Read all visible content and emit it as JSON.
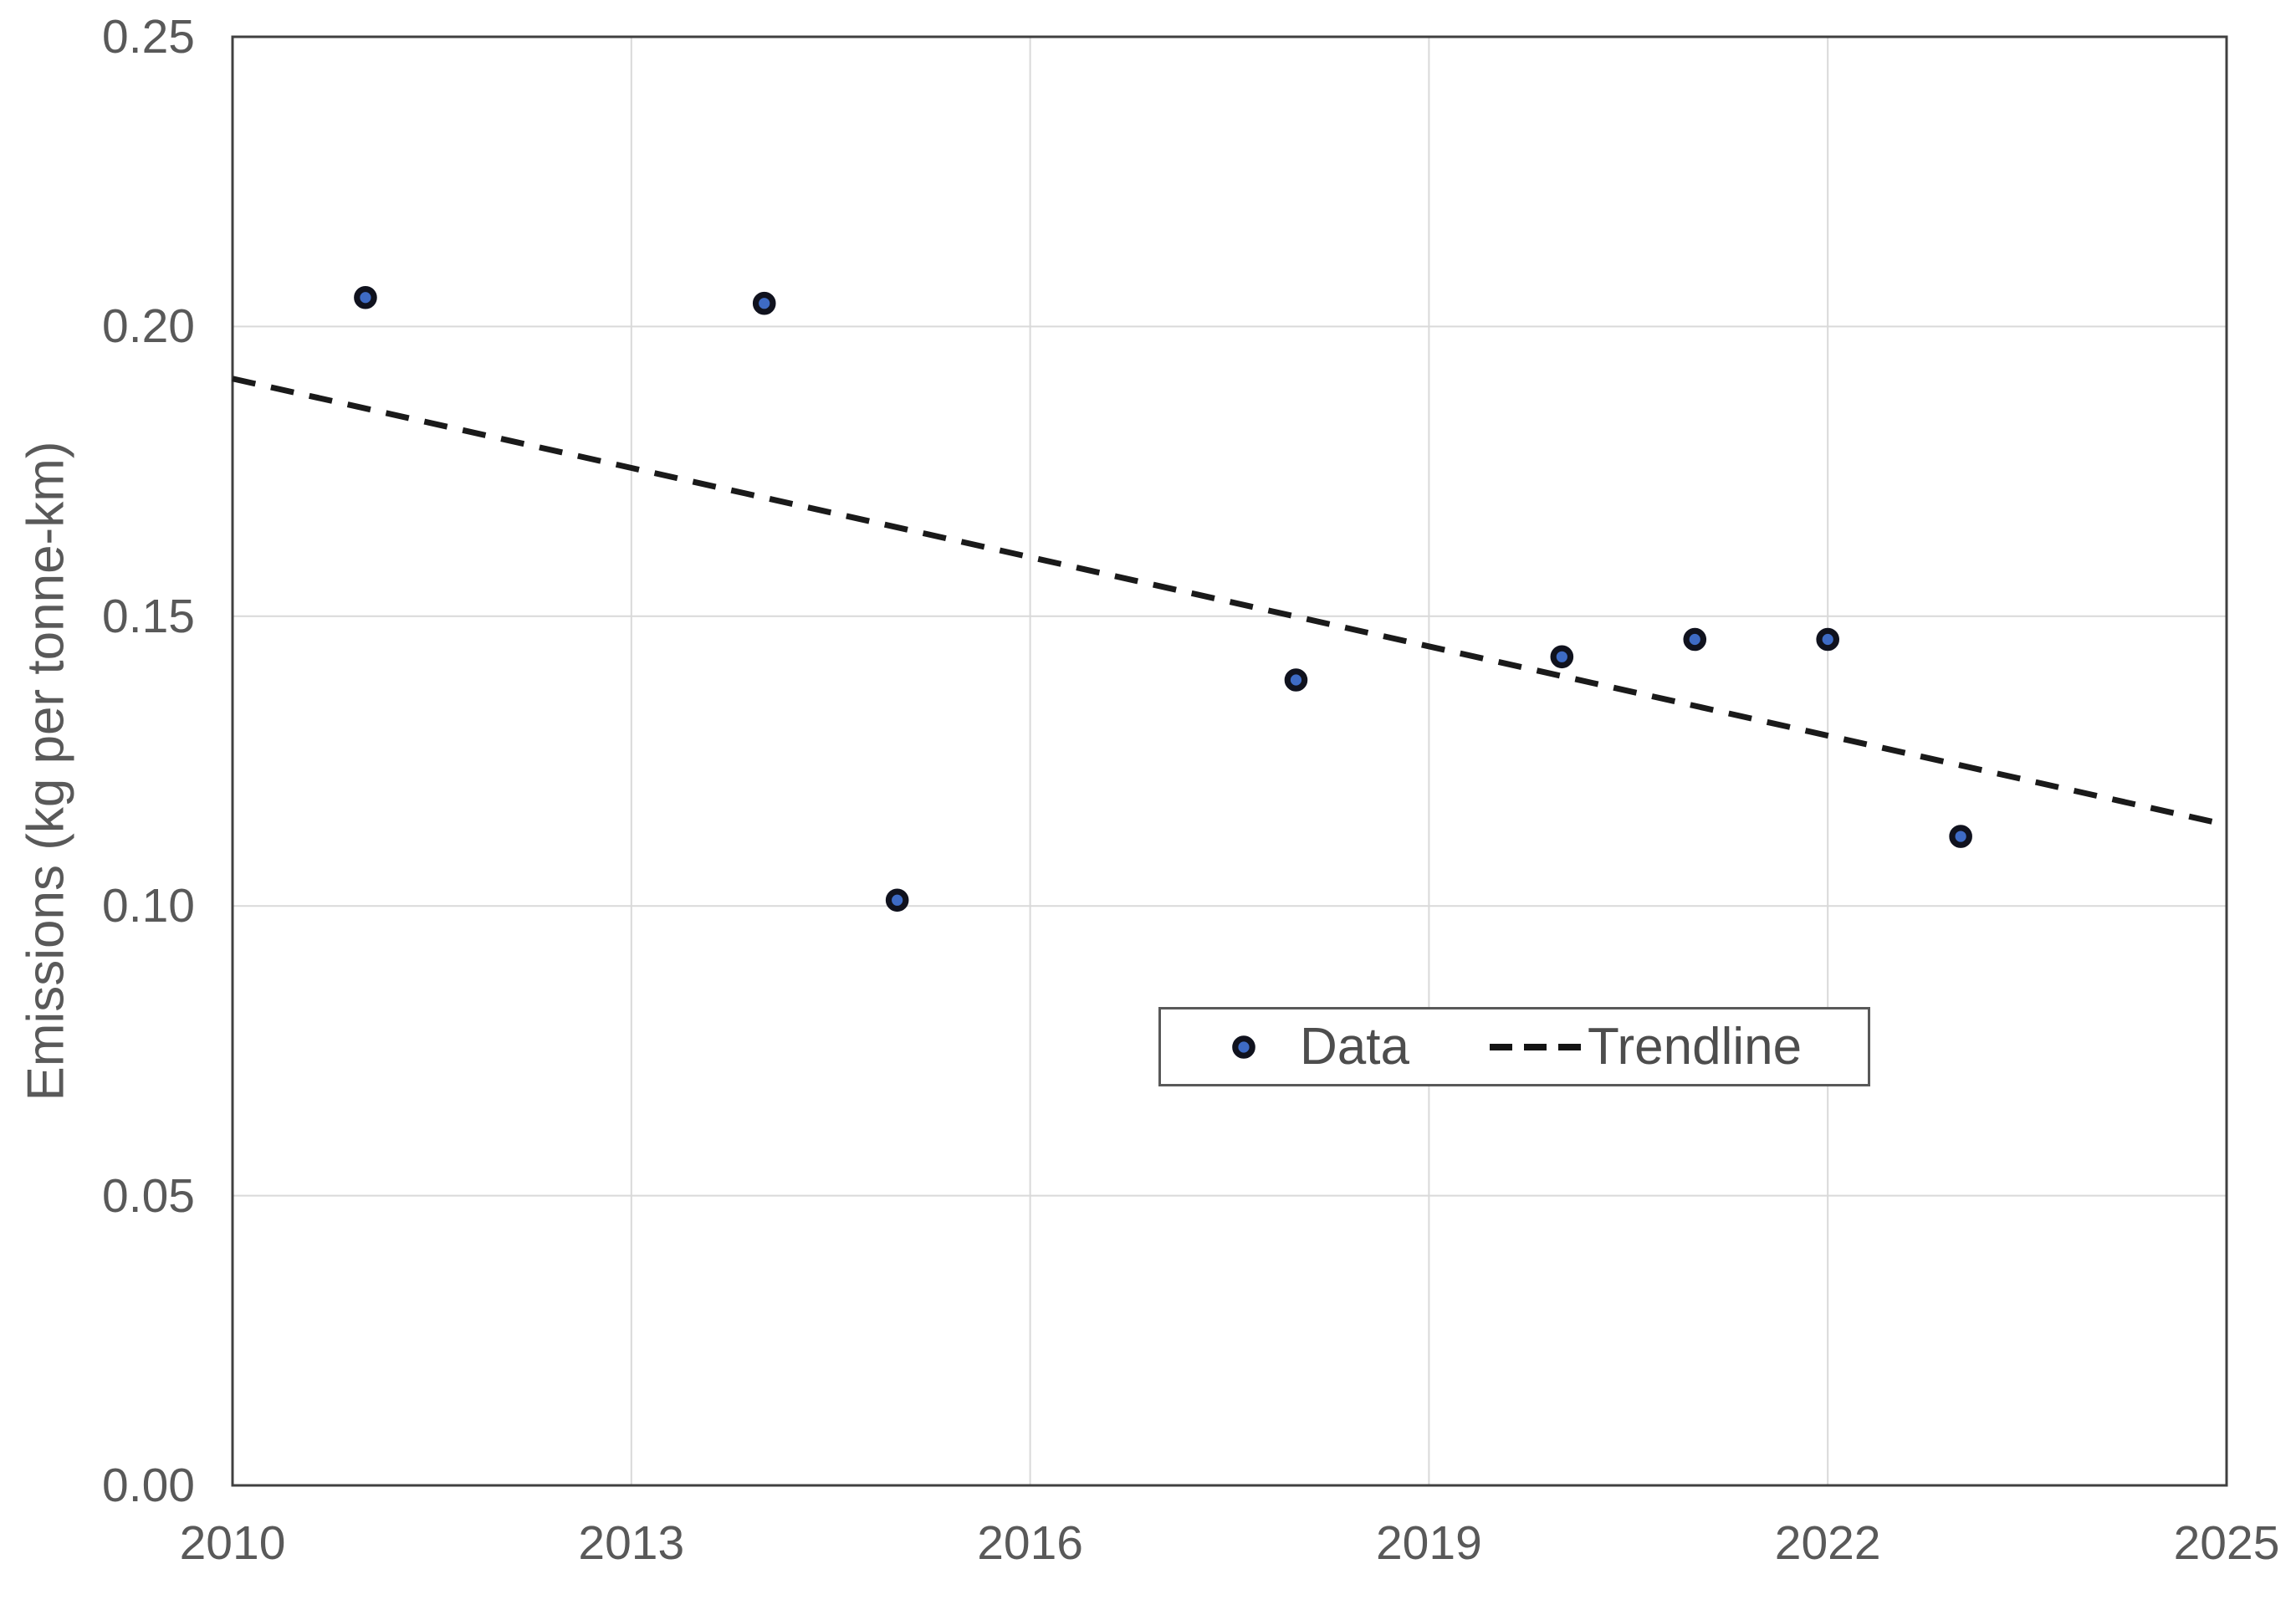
{
  "chart_data": {
    "type": "scatter",
    "title": "",
    "xlabel": "",
    "ylabel": "Emissions (kg per tonne-km)",
    "xlim": [
      2010,
      2025
    ],
    "ylim": [
      0.0,
      0.25
    ],
    "grid": true,
    "x_ticks": [
      2010,
      2013,
      2016,
      2019,
      2022,
      2025
    ],
    "x_tick_labels": [
      "2010",
      "2013",
      "2016",
      "2019",
      "2022",
      "2025"
    ],
    "y_ticks": [
      0.0,
      0.05,
      0.1,
      0.15,
      0.2,
      0.25
    ],
    "y_tick_labels": [
      "0.00",
      "0.05",
      "0.10",
      "0.15",
      "0.20",
      "0.25"
    ],
    "series": [
      {
        "name": "Data",
        "kind": "scatter",
        "points": [
          [
            2011,
            0.205
          ],
          [
            2014,
            0.204
          ],
          [
            2015,
            0.101
          ],
          [
            2018,
            0.139
          ],
          [
            2020,
            0.143
          ],
          [
            2021,
            0.146
          ],
          [
            2022,
            0.146
          ],
          [
            2023,
            0.112
          ]
        ]
      },
      {
        "name": "Trendline",
        "kind": "line",
        "dashed": true,
        "points": [
          [
            2010,
            0.191
          ],
          [
            2025,
            0.114
          ]
        ]
      }
    ],
    "legend": {
      "position": "inside-lower-right",
      "labels": [
        "Data",
        "Trendline"
      ]
    }
  },
  "colors": {
    "marker_fill": "#3e6bc5",
    "marker_stroke": "#10121e",
    "trendline": "#1a1a1a",
    "gridline": "#d9d9d9",
    "plot_border": "#404040",
    "axis_text": "#595959",
    "legend_border": "#595959",
    "legend_text": "#4d4d4d",
    "background": "#ffffff"
  }
}
